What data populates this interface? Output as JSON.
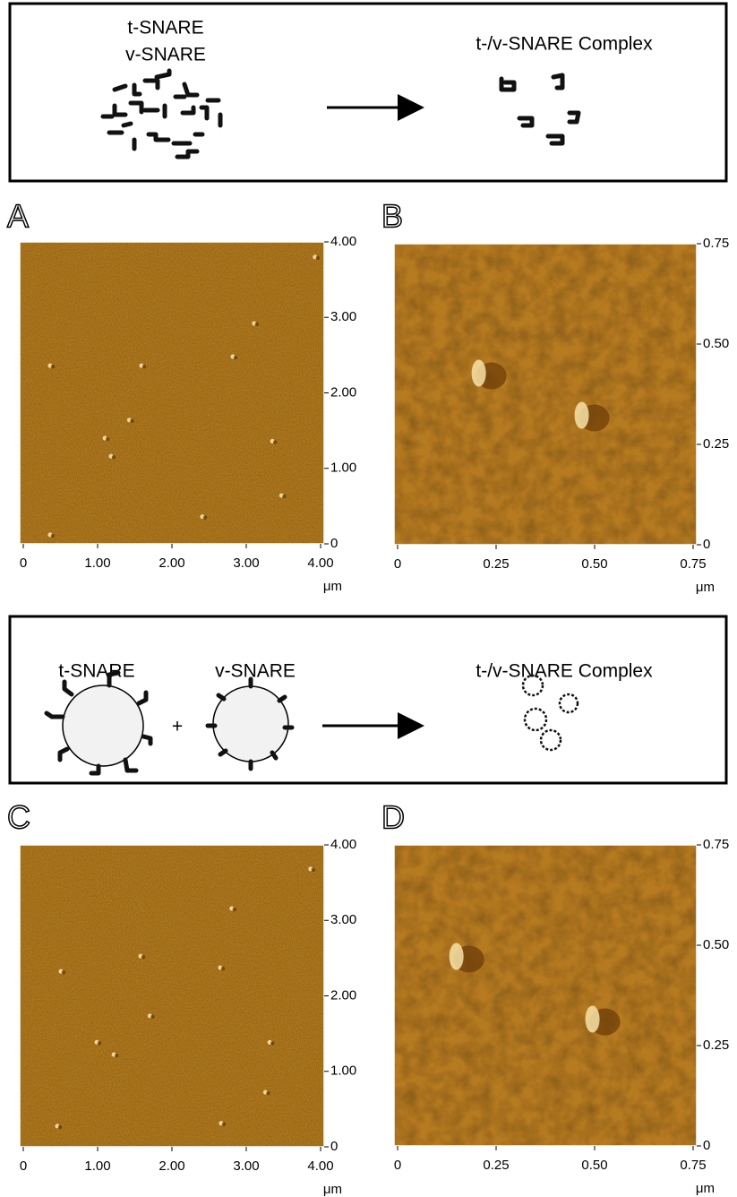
{
  "schematic_top": {
    "label_first": "t-SNARE",
    "label_second": "v-SNARE",
    "product": "t-/v-SNARE Complex"
  },
  "panels": [
    {
      "letter": "A",
      "x_ticks": [
        "0",
        "1.00",
        "2.00",
        "3.00",
        "4.00"
      ],
      "y_ticks": [
        "0",
        "1.00",
        "2.00",
        "3.00",
        "4.00"
      ],
      "unit": "μm"
    },
    {
      "letter": "B",
      "x_ticks": [
        "0",
        "0.25",
        "0.50",
        "0.75"
      ],
      "y_ticks": [
        "0",
        "0.25",
        "0.50",
        "0.75"
      ],
      "unit": "μm"
    }
  ],
  "schematic_bottom": {
    "left": "t-SNARE",
    "plus": "+",
    "middle": "v-SNARE",
    "product": "t-/v-SNARE Complex"
  },
  "panels_bottom": [
    {
      "letter": "C",
      "x_ticks": [
        "0",
        "1.00",
        "2.00",
        "3.00",
        "4.00"
      ],
      "y_ticks": [
        "0",
        "1.00",
        "2.00",
        "3.00",
        "4.00"
      ],
      "unit": "μm"
    },
    {
      "letter": "D",
      "x_ticks": [
        "0",
        "0.25",
        "0.50",
        "0.75"
      ],
      "y_ticks": [
        "0",
        "0.25",
        "0.50",
        "0.75"
      ],
      "unit": "μm"
    }
  ]
}
